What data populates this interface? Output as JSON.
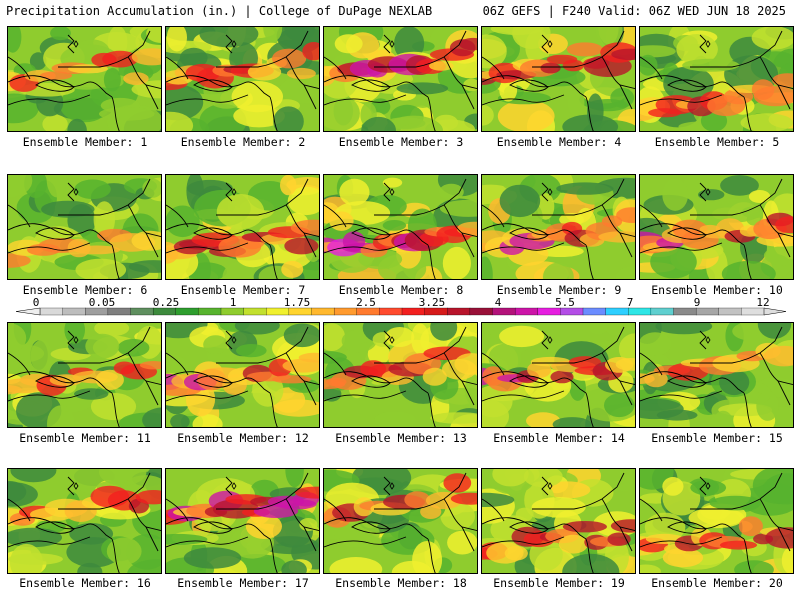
{
  "header": {
    "left": "Precipitation Accumulation (in.) | College of DuPage NEXLAB",
    "right": "06Z GEFS | F240 Valid: 06Z WED JUN 18 2025"
  },
  "colorbar": {
    "labels": [
      "0",
      "0.05",
      "0.25",
      "1",
      "1.75",
      "2.5",
      "3.25",
      "4",
      "5.5",
      "7",
      "9",
      "12"
    ],
    "colors": [
      "#d9d9d9",
      "#bdbdbd",
      "#9e9e9e",
      "#7f7f7f",
      "#5f8f5f",
      "#3d8a3d",
      "#2e9e2e",
      "#57b32e",
      "#8fcc2e",
      "#c2e02e",
      "#f0f02e",
      "#ffd42e",
      "#ffb82e",
      "#ff9a2e",
      "#ff7a2e",
      "#ff4a2e",
      "#f21f1f",
      "#d61a1a",
      "#b8142b",
      "#991038",
      "#b3127a",
      "#cc14a8",
      "#e61ee0",
      "#b34de6",
      "#6b8cff",
      "#2ecfff",
      "#2ee6e6",
      "#5fcfcf",
      "#8a8a8a",
      "#a6a6a6",
      "#c2c2c2",
      "#dedede"
    ]
  },
  "members": [
    {
      "label": "Ensemble Member: 1",
      "intensity": 0.35
    },
    {
      "label": "Ensemble Member: 2",
      "intensity": 0.55
    },
    {
      "label": "Ensemble Member: 3",
      "intensity": 0.75
    },
    {
      "label": "Ensemble Member: 4",
      "intensity": 0.7
    },
    {
      "label": "Ensemble Member: 5",
      "intensity": 0.6
    },
    {
      "label": "Ensemble Member: 6",
      "intensity": 0.25
    },
    {
      "label": "Ensemble Member: 7",
      "intensity": 0.6
    },
    {
      "label": "Ensemble Member: 8",
      "intensity": 0.85
    },
    {
      "label": "Ensemble Member: 9",
      "intensity": 0.85
    },
    {
      "label": "Ensemble Member: 10",
      "intensity": 0.8
    },
    {
      "label": "Ensemble Member: 11",
      "intensity": 0.4
    },
    {
      "label": "Ensemble Member: 12",
      "intensity": 0.7
    },
    {
      "label": "Ensemble Member: 13",
      "intensity": 0.55
    },
    {
      "label": "Ensemble Member: 14",
      "intensity": 0.65
    },
    {
      "label": "Ensemble Member: 15",
      "intensity": 0.3
    },
    {
      "label": "Ensemble Member: 16",
      "intensity": 0.45
    },
    {
      "label": "Ensemble Member: 17",
      "intensity": 0.8
    },
    {
      "label": "Ensemble Member: 18",
      "intensity": 0.5
    },
    {
      "label": "Ensemble Member: 19",
      "intensity": 0.7
    },
    {
      "label": "Ensemble Member: 20",
      "intensity": 0.55
    }
  ]
}
